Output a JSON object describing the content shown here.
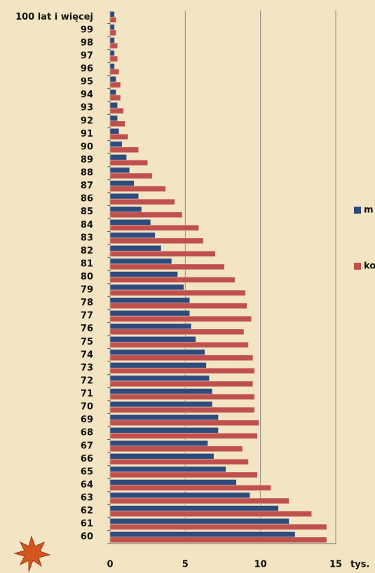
{
  "chart_data": {
    "type": "barh",
    "categories": [
      "60",
      "61",
      "62",
      "63",
      "64",
      "65",
      "66",
      "67",
      "68",
      "69",
      "70",
      "71",
      "72",
      "73",
      "74",
      "75",
      "76",
      "77",
      "78",
      "79",
      "80",
      "81",
      "82",
      "83",
      "84",
      "85",
      "86",
      "87",
      "88",
      "89",
      "90",
      "91",
      "92",
      "93",
      "94",
      "95",
      "96",
      "97",
      "98",
      "99",
      "100 lat i więcej"
    ],
    "series": [
      {
        "name": "m",
        "color": "#2f4b7c",
        "values": [
          12.3,
          11.9,
          11.2,
          9.3,
          8.4,
          7.7,
          6.9,
          6.5,
          7.2,
          7.2,
          6.8,
          6.8,
          6.6,
          6.4,
          6.3,
          5.7,
          5.4,
          5.3,
          5.3,
          4.9,
          4.5,
          4.1,
          3.4,
          3.0,
          2.7,
          2.1,
          1.9,
          1.6,
          1.3,
          1.1,
          0.8,
          0.6,
          0.5,
          0.5,
          0.4,
          0.4,
          0.3,
          0.3,
          0.3,
          0.3,
          0.3
        ]
      },
      {
        "name": "ko",
        "color": "#c0504d",
        "values": [
          14.4,
          14.4,
          13.4,
          11.9,
          10.7,
          9.8,
          9.2,
          8.8,
          9.8,
          9.9,
          9.6,
          9.6,
          9.5,
          9.6,
          9.5,
          9.2,
          8.9,
          9.4,
          9.1,
          9.0,
          8.3,
          7.6,
          7.0,
          6.2,
          5.9,
          4.8,
          4.3,
          3.7,
          2.8,
          2.5,
          1.9,
          1.2,
          1.0,
          0.9,
          0.7,
          0.7,
          0.6,
          0.5,
          0.5,
          0.4,
          0.4
        ]
      }
    ],
    "xlim": [
      0,
      15
    ],
    "xticks": [
      0,
      5,
      10,
      15
    ],
    "x_unit": "tys.",
    "grid": true,
    "legend": "right"
  }
}
